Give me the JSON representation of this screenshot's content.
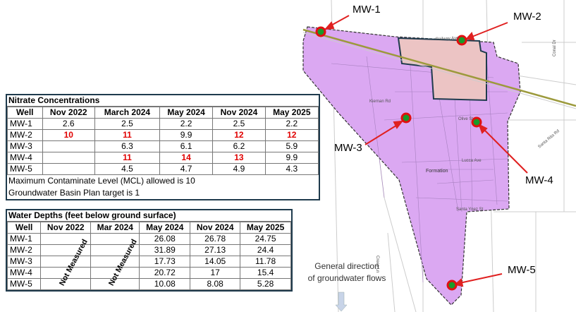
{
  "map": {
    "wells": [
      "MW-1",
      "MW-2",
      "MW-3",
      "MW-4",
      "MW-5"
    ],
    "streets": [
      "Railway Ave",
      "Kiernan Rd",
      "Olive St",
      "Lucca Ave",
      "Santa Ynez St",
      "Crees Ln",
      "Santa Rita Rd",
      "Conal Dr"
    ],
    "area_label": "Formation",
    "flow_note": [
      "General direction",
      "of groundwater flows"
    ]
  },
  "nitrate_table": {
    "title": "Nitrate Concentrations",
    "header": [
      "Well",
      "Nov 2022",
      "March 2024",
      "May 2024",
      "Nov 2024",
      "May 2025"
    ],
    "rows": [
      [
        "MW-1",
        "2.6",
        "2.5",
        "2.2",
        "2.5",
        "2.2"
      ],
      [
        "MW-2",
        {
          "text": "10",
          "flag": true
        },
        {
          "text": "11",
          "flag": true
        },
        "9.9",
        {
          "text": "12",
          "flag": true
        },
        {
          "text": "12",
          "flag": true
        }
      ],
      [
        "MW-3",
        null,
        "6.3",
        "6.1",
        "6.2",
        "5.9"
      ],
      [
        "MW-4",
        null,
        {
          "text": "11",
          "flag": true
        },
        {
          "text": "14",
          "flag": true
        },
        {
          "text": "13",
          "flag": true
        },
        "9.9"
      ],
      [
        "MW-5",
        null,
        "4.5",
        "4.7",
        "4.9",
        "4.3"
      ]
    ],
    "notes": [
      "Maximum Contaminate Level (MCL) allowed is 10",
      "Groundwater Basin Plan target is 1"
    ]
  },
  "depth_table": {
    "title": "Water Depths (feet below ground surface)",
    "header": [
      "Well",
      "Nov 2022",
      "Mar 2024",
      "May 2024",
      "Nov 2024",
      "May 2025"
    ],
    "rows": [
      [
        "MW-1",
        null,
        null,
        "26.08",
        "26.78",
        "24.75"
      ],
      [
        "MW-2",
        null,
        null,
        "31.89",
        "27.13",
        "24.4"
      ],
      [
        "MW-3",
        null,
        null,
        "17.73",
        "14.05",
        "11.78"
      ],
      [
        "MW-4",
        null,
        null,
        "20.72",
        "17",
        "15.4"
      ],
      [
        "MW-5",
        null,
        null,
        "10.08",
        "8.08",
        "5.28"
      ]
    ],
    "not_measured": [
      "Not Measured",
      "Not Measured"
    ]
  }
}
